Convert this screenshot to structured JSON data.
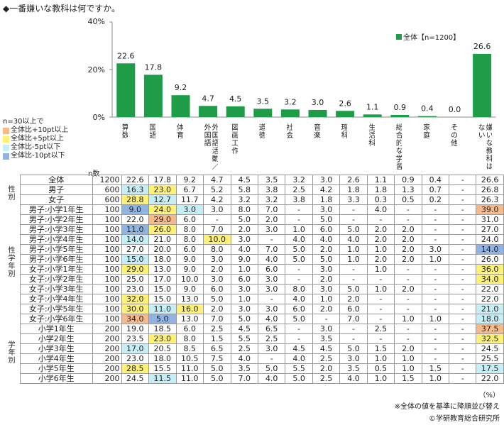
{
  "title": "◆一番嫌いな教科は何ですか。",
  "series_label": "全体【n=1200】",
  "legend": {
    "n_note": "n=30以上で",
    "items": [
      {
        "label": "全体比+10pt以上",
        "color": "#f5b98a"
      },
      {
        "label": "全体比+5pt以上",
        "color": "#fff176"
      },
      {
        "label": "全体比-5pt以下",
        "color": "#c6eef7"
      },
      {
        "label": "全体比-10pt以下",
        "color": "#8fb4e3"
      }
    ]
  },
  "n_header": "n数",
  "footnote_unit": "（%）",
  "footnote_sort": "※全体の値を基準に降順並び替え",
  "footnote_copy": "©学研教育総合研究所",
  "colors": {
    "bar": "#1e9c48",
    "plus10": "#f5b98a",
    "plus5": "#fff176",
    "minus5": "#c6eef7",
    "minus10": "#8fb4e3"
  },
  "chart_data": {
    "type": "bar",
    "categories": [
      "算数",
      "国語",
      "体育",
      "外国語活動／外国語",
      "図画工作",
      "道徳",
      "社会",
      "音楽",
      "理科",
      "生活科",
      "総合的な学習",
      "家庭",
      "その他",
      "嫌いな教科はない"
    ],
    "values": [
      22.6,
      17.8,
      9.2,
      4.7,
      4.5,
      3.5,
      3.2,
      3.0,
      2.6,
      1.1,
      0.9,
      0.4,
      0.0,
      26.6
    ],
    "value_labels": [
      "22.6",
      "17.8",
      "9.2",
      "4.7",
      "4.5",
      "3.5",
      "3.2",
      "3.0",
      "2.6",
      "1.1",
      "0.9",
      "0.4",
      "0.0",
      "26.6"
    ],
    "ylim": [
      0,
      40
    ],
    "yticks": [
      "0%",
      "20%",
      "40%"
    ],
    "series": [
      {
        "name": "全体【n=1200】",
        "values": [
          22.6,
          17.8,
          9.2,
          4.7,
          4.5,
          3.5,
          3.2,
          3.0,
          2.6,
          1.1,
          0.9,
          0.4,
          0.0,
          26.6
        ]
      }
    ]
  },
  "column_headers": [
    "算数",
    "国語",
    "体育",
    "外国語活動／外国語",
    "図画工作",
    "道徳",
    "社会",
    "音楽",
    "理科",
    "生活科",
    "総合的な学習",
    "家庭",
    "その他",
    "嫌いな教科はない"
  ],
  "groups": [
    {
      "label": "",
      "rows": [
        0
      ]
    },
    {
      "label": "性別",
      "rows": [
        1,
        2
      ]
    },
    {
      "label": "性学年別",
      "rows": [
        3,
        4,
        5,
        6,
        7,
        8,
        9,
        10,
        11,
        12,
        13,
        14
      ]
    },
    {
      "label": "学年別",
      "rows": [
        15,
        16,
        17,
        18,
        19,
        20
      ]
    }
  ],
  "rows": [
    {
      "label": "全体",
      "n": "1200",
      "cells": [
        "22.6",
        "17.8",
        "9.2",
        "4.7",
        "4.5",
        "3.5",
        "3.2",
        "3.0",
        "2.6",
        "1.1",
        "0.9",
        "0.4",
        "-",
        "26.6"
      ],
      "hl": [
        "",
        "",
        "",
        "",
        "",
        "",
        "",
        "",
        "",
        "",
        "",
        "",
        "",
        ""
      ]
    },
    {
      "label": "男子",
      "n": "600",
      "cells": [
        "16.3",
        "23.0",
        "6.7",
        "5.2",
        "5.8",
        "3.8",
        "2.5",
        "4.2",
        "1.8",
        "1.8",
        "1.3",
        "0.7",
        "-",
        "26.8"
      ],
      "hl": [
        "m5",
        "p5",
        "",
        "",
        "",
        "",
        "",
        "",
        "",
        "",
        "",
        "",
        "",
        ""
      ]
    },
    {
      "label": "女子",
      "n": "600",
      "cells": [
        "28.8",
        "12.7",
        "11.7",
        "4.2",
        "3.2",
        "3.2",
        "3.8",
        "1.8",
        "3.3",
        "0.3",
        "0.5",
        "0.2",
        "-",
        "26.3"
      ],
      "hl": [
        "p5",
        "m5",
        "",
        "",
        "",
        "",
        "",
        "",
        "",
        "",
        "",
        "",
        "",
        ""
      ]
    },
    {
      "label": "男子:小学1年生",
      "n": "100",
      "cells": [
        "9.0",
        "24.0",
        "3.0",
        "3.0",
        "8.0",
        "7.0",
        "-",
        "3.0",
        "-",
        "4.0",
        "-",
        "-",
        "-",
        "39.0"
      ],
      "hl": [
        "m10",
        "p5",
        "m5",
        "",
        "",
        "",
        "",
        "",
        "",
        "",
        "",
        "",
        "",
        "p10"
      ]
    },
    {
      "label": "男子:小学2年生",
      "n": "100",
      "cells": [
        "22.0",
        "29.0",
        "6.0",
        "-",
        "5.0",
        "2.0",
        "-",
        "5.0",
        "-",
        "-",
        "-",
        "-",
        "-",
        "31.0"
      ],
      "hl": [
        "",
        "p10",
        "",
        "",
        "",
        "",
        "",
        "",
        "",
        "",
        "",
        "",
        "",
        ""
      ]
    },
    {
      "label": "男子:小学3年生",
      "n": "100",
      "cells": [
        "11.0",
        "26.0",
        "8.0",
        "7.0",
        "2.0",
        "3.0",
        "1.0",
        "6.0",
        "5.0",
        "2.0",
        "2.0",
        "-",
        "-",
        "27.0"
      ],
      "hl": [
        "m10",
        "p5",
        "",
        "",
        "",
        "",
        "",
        "",
        "",
        "",
        "",
        "",
        "",
        ""
      ]
    },
    {
      "label": "男子:小学4年生",
      "n": "100",
      "cells": [
        "14.0",
        "21.0",
        "8.0",
        "10.0",
        "3.0",
        "-",
        "4.0",
        "4.0",
        "4.0",
        "2.0",
        "2.0",
        "-",
        "-",
        "24.0"
      ],
      "hl": [
        "m5",
        "",
        "",
        "p5",
        "",
        "",
        "",
        "",
        "",
        "",
        "",
        "",
        "",
        ""
      ]
    },
    {
      "label": "男子:小学5年生",
      "n": "100",
      "cells": [
        "27.0",
        "20.0",
        "6.0",
        "8.0",
        "4.0",
        "7.0",
        "5.0",
        "2.0",
        "1.0",
        "1.0",
        "2.0",
        "3.0",
        "-",
        "14.0"
      ],
      "hl": [
        "",
        "",
        "",
        "",
        "",
        "",
        "",
        "",
        "",
        "",
        "",
        "",
        "",
        "m10"
      ]
    },
    {
      "label": "男子:小学6年生",
      "n": "100",
      "cells": [
        "15.0",
        "18.0",
        "9.0",
        "3.0",
        "9.0",
        "4.0",
        "5.0",
        "5.0",
        "1.0",
        "2.0",
        "2.0",
        "1.0",
        "-",
        "26.0"
      ],
      "hl": [
        "m5",
        "",
        "",
        "",
        "",
        "",
        "",
        "",
        "",
        "",
        "",
        "",
        "",
        ""
      ]
    },
    {
      "label": "女子:小学1年生",
      "n": "100",
      "cells": [
        "29.0",
        "13.0",
        "9.0",
        "2.0",
        "1.0",
        "6.0",
        "-",
        "3.0",
        "-",
        "1.0",
        "-",
        "-",
        "-",
        "36.0"
      ],
      "hl": [
        "p5",
        "",
        "",
        "",
        "",
        "",
        "",
        "",
        "",
        "",
        "",
        "",
        "",
        "p5"
      ]
    },
    {
      "label": "女子:小学2年生",
      "n": "100",
      "cells": [
        "25.0",
        "17.0",
        "10.0",
        "3.0",
        "6.0",
        "3.0",
        "-",
        "2.0",
        "-",
        "-",
        "-",
        "-",
        "-",
        "34.0"
      ],
      "hl": [
        "",
        "",
        "",
        "",
        "",
        "",
        "",
        "",
        "",
        "",
        "",
        "",
        "",
        "p5"
      ]
    },
    {
      "label": "女子:小学3年生",
      "n": "100",
      "cells": [
        "23.0",
        "15.0",
        "9.0",
        "6.0",
        "3.0",
        "3.0",
        "8.0",
        "3.0",
        "5.0",
        "1.0",
        "2.0",
        "-",
        "-",
        "22.0"
      ],
      "hl": [
        "",
        "",
        "",
        "",
        "",
        "",
        "",
        "",
        "",
        "",
        "",
        "",
        "",
        ""
      ]
    },
    {
      "label": "女子:小学4年生",
      "n": "100",
      "cells": [
        "32.0",
        "15.0",
        "13.0",
        "5.0",
        "1.0",
        "-",
        "4.0",
        "1.0",
        "2.0",
        "-",
        "-",
        "-",
        "-",
        "22.0"
      ],
      "hl": [
        "p5",
        "",
        "",
        "",
        "",
        "",
        "",
        "",
        "",
        "",
        "",
        "",
        "",
        ""
      ]
    },
    {
      "label": "女子:小学5年生",
      "n": "100",
      "cells": [
        "30.0",
        "11.0",
        "16.0",
        "2.0",
        "3.0",
        "3.0",
        "6.0",
        "2.0",
        "6.0",
        "-",
        "-",
        "-",
        "-",
        "21.0"
      ],
      "hl": [
        "p5",
        "m5",
        "p5",
        "",
        "",
        "",
        "",
        "",
        "",
        "",
        "",
        "",
        "",
        "m5"
      ]
    },
    {
      "label": "女子:小学6年生",
      "n": "100",
      "cells": [
        "34.0",
        "5.0",
        "13.0",
        "7.0",
        "5.0",
        "4.0",
        "5.0",
        "-",
        "7.0",
        "-",
        "1.0",
        "1.0",
        "-",
        "18.0"
      ],
      "hl": [
        "p10",
        "m10",
        "",
        "",
        "",
        "",
        "",
        "",
        "",
        "",
        "",
        "",
        "",
        "m5"
      ]
    },
    {
      "label": "小学1年生",
      "n": "200",
      "cells": [
        "19.0",
        "18.5",
        "6.0",
        "2.5",
        "4.5",
        "6.5",
        "-",
        "3.0",
        "-",
        "2.5",
        "-",
        "-",
        "-",
        "37.5"
      ],
      "hl": [
        "",
        "",
        "",
        "",
        "",
        "",
        "",
        "",
        "",
        "",
        "",
        "",
        "",
        "p10"
      ]
    },
    {
      "label": "小学2年生",
      "n": "200",
      "cells": [
        "23.5",
        "23.0",
        "8.0",
        "1.5",
        "5.5",
        "2.5",
        "-",
        "3.5",
        "-",
        "-",
        "-",
        "-",
        "-",
        "32.5"
      ],
      "hl": [
        "",
        "p5",
        "",
        "",
        "",
        "",
        "",
        "",
        "",
        "",
        "",
        "",
        "",
        "p5"
      ]
    },
    {
      "label": "小学3年生",
      "n": "200",
      "cells": [
        "17.0",
        "20.5",
        "8.5",
        "6.5",
        "2.5",
        "3.0",
        "4.5",
        "4.5",
        "5.0",
        "1.5",
        "2.0",
        "-",
        "-",
        "24.5"
      ],
      "hl": [
        "m5",
        "",
        "",
        "",
        "",
        "",
        "",
        "",
        "",
        "",
        "",
        "",
        "",
        ""
      ]
    },
    {
      "label": "小学4年生",
      "n": "200",
      "cells": [
        "23.0",
        "18.0",
        "10.5",
        "7.5",
        "4.0",
        "-",
        "4.0",
        "2.5",
        "3.0",
        "1.0",
        "1.0",
        "-",
        "-",
        "25.5"
      ],
      "hl": [
        "",
        "",
        "",
        "",
        "",
        "",
        "",
        "",
        "",
        "",
        "",
        "",
        "",
        ""
      ]
    },
    {
      "label": "小学5年生",
      "n": "200",
      "cells": [
        "28.5",
        "15.5",
        "11.0",
        "5.0",
        "3.5",
        "5.0",
        "5.5",
        "2.0",
        "3.5",
        "0.5",
        "1.0",
        "1.5",
        "-",
        "17.5"
      ],
      "hl": [
        "p5",
        "",
        "",
        "",
        "",
        "",
        "",
        "",
        "",
        "",
        "",
        "",
        "",
        "m5"
      ]
    },
    {
      "label": "小学6年生",
      "n": "200",
      "cells": [
        "24.5",
        "11.5",
        "11.0",
        "5.0",
        "7.0",
        "4.0",
        "5.0",
        "2.5",
        "4.0",
        "1.0",
        "1.5",
        "1.0",
        "-",
        "22.0"
      ],
      "hl": [
        "",
        "m5",
        "",
        "",
        "",
        "",
        "",
        "",
        "",
        "",
        "",
        "",
        "",
        ""
      ]
    }
  ]
}
